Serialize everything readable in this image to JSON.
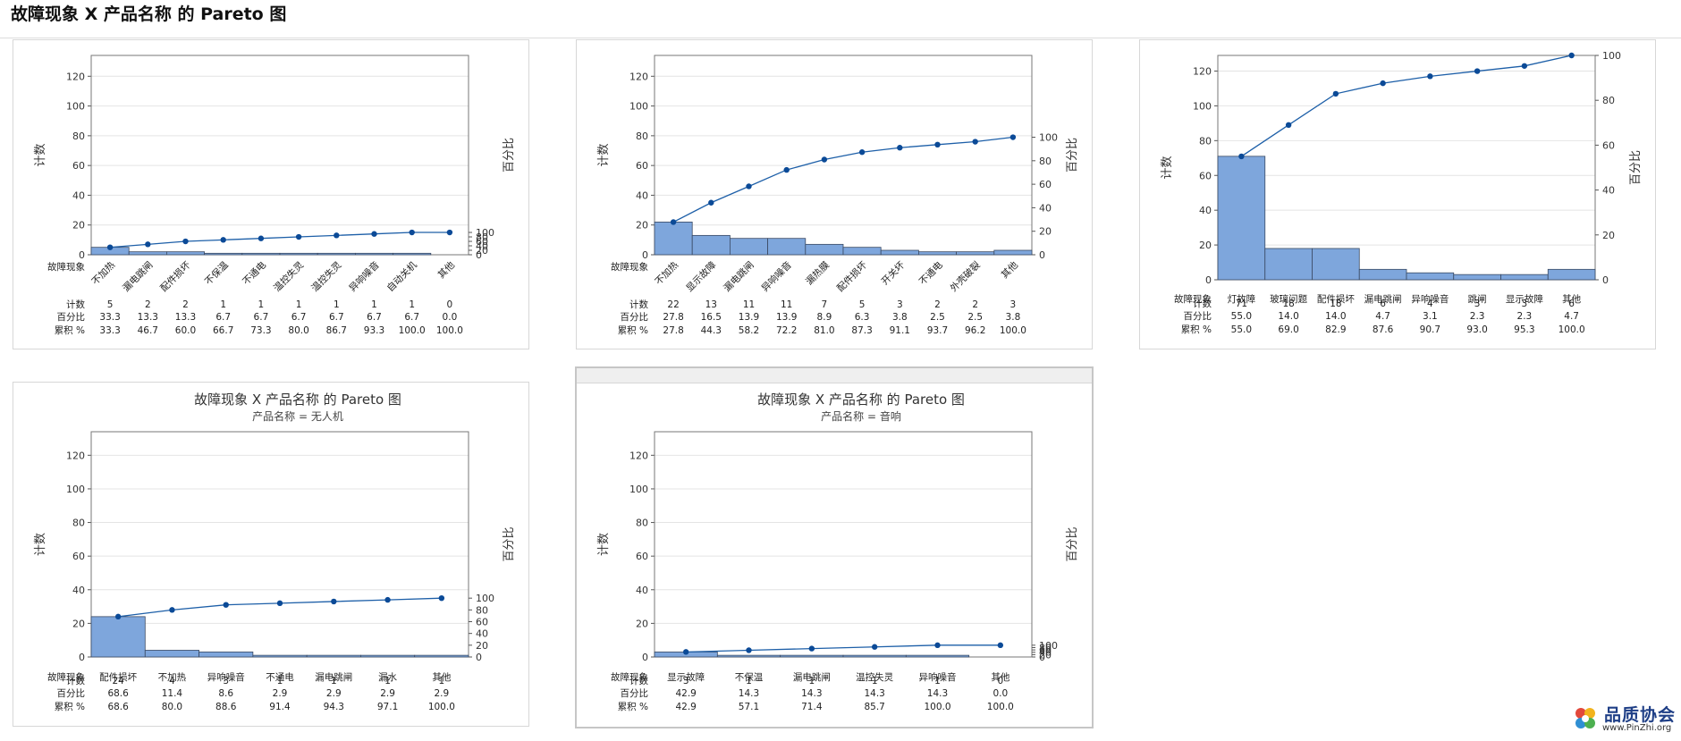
{
  "page": {
    "title": "故障现象 X 产品名称 的 Pareto 图"
  },
  "watermark": {
    "name": "品质协会",
    "url": "www.PinZhi.org"
  },
  "colors": {
    "bar": "#7ea6dc",
    "bar_edge": "#3a4a63",
    "line": "#1d5fa8",
    "marker": "#0b4a97"
  },
  "chart_data": [
    {
      "type": "bar",
      "title": "",
      "subtitle": "",
      "ylabel": "计数",
      "y2label": "百分比",
      "ylim": [
        0,
        134
      ],
      "y2lim": [
        0,
        100
      ],
      "yticks": [
        0,
        20,
        40,
        60,
        80,
        100,
        120
      ],
      "y2ticks": [
        0,
        20,
        40,
        60,
        80,
        100
      ],
      "row_labels": [
        "故障现象",
        "计数",
        "百分比",
        "累积 %"
      ],
      "categories": [
        "不加热",
        "漏电跳闸",
        "配件损坏",
        "不保温",
        "不通电",
        "温控失灵",
        "温控失灵",
        "异响噪音",
        "自动关机",
        "其他"
      ],
      "counts": [
        "5",
        "2",
        "2",
        "1",
        "1",
        "1",
        "1",
        "1",
        "1",
        "0"
      ],
      "percent": [
        "33.3",
        "13.3",
        "13.3",
        "6.7",
        "6.7",
        "6.7",
        "6.7",
        "6.7",
        "6.7",
        "0.0"
      ],
      "cumulative": [
        "33.3",
        "46.7",
        "60.0",
        "66.7",
        "73.3",
        "80.0",
        "86.7",
        "93.3",
        "100.0",
        "100.0"
      ],
      "rotate_labels": true
    },
    {
      "type": "bar",
      "title": "",
      "subtitle": "",
      "ylabel": "计数",
      "y2label": "百分比",
      "ylim": [
        0,
        134
      ],
      "y2lim": [
        0,
        100
      ],
      "yticks": [
        0,
        20,
        40,
        60,
        80,
        100,
        120
      ],
      "y2ticks": [
        0,
        20,
        40,
        60,
        80,
        100
      ],
      "row_labels": [
        "故障现象",
        "计数",
        "百分比",
        "累积 %"
      ],
      "categories": [
        "不加热",
        "显示故障",
        "漏电跳闸",
        "异响噪音",
        "漏热膜",
        "配件损坏",
        "开关坏",
        "不通电",
        "外壳破裂",
        "其他"
      ],
      "counts": [
        "22",
        "13",
        "11",
        "11",
        "7",
        "5",
        "3",
        "2",
        "2",
        "3"
      ],
      "percent": [
        "27.8",
        "16.5",
        "13.9",
        "13.9",
        "8.9",
        "6.3",
        "3.8",
        "2.5",
        "2.5",
        "3.8"
      ],
      "cumulative": [
        "27.8",
        "44.3",
        "58.2",
        "72.2",
        "81.0",
        "87.3",
        "91.1",
        "93.7",
        "96.2",
        "100.0"
      ],
      "rotate_labels": true
    },
    {
      "type": "bar",
      "title": "",
      "subtitle": "",
      "ylabel": "计数",
      "y2label": "百分比",
      "ylim": [
        0,
        129
      ],
      "y2lim": [
        0,
        100
      ],
      "yticks": [
        0,
        20,
        40,
        60,
        80,
        100,
        120
      ],
      "y2ticks": [
        0,
        20,
        40,
        60,
        80,
        100
      ],
      "row_labels": [
        "故障现象",
        "计数",
        "百分比",
        "累积 %"
      ],
      "categories": [
        "灯故障",
        "玻璃问题",
        "配件损坏",
        "漏电跳闸",
        "异响噪音",
        "跳闸",
        "显示故障",
        "其他"
      ],
      "counts": [
        "71",
        "18",
        "18",
        "6",
        "4",
        "3",
        "3",
        "6"
      ],
      "percent": [
        "55.0",
        "14.0",
        "14.0",
        "4.7",
        "3.1",
        "2.3",
        "2.3",
        "4.7"
      ],
      "cumulative": [
        "55.0",
        "69.0",
        "82.9",
        "87.6",
        "90.7",
        "93.0",
        "95.3",
        "100.0"
      ],
      "rotate_labels": false
    },
    {
      "type": "bar",
      "title": "故障现象 X 产品名称 的 Pareto 图",
      "subtitle": "产品名称 = 无人机",
      "ylabel": "计数",
      "y2label": "百分比",
      "ylim": [
        0,
        134
      ],
      "y2lim": [
        0,
        100
      ],
      "yticks": [
        0,
        20,
        40,
        60,
        80,
        100,
        120
      ],
      "y2ticks": [
        0,
        20,
        40,
        60,
        80,
        100
      ],
      "row_labels": [
        "故障现象",
        "计数",
        "百分比",
        "累积 %"
      ],
      "categories": [
        "配件损坏",
        "不加热",
        "异响噪音",
        "不通电",
        "漏电跳闸",
        "漏水",
        "其他"
      ],
      "counts": [
        "24",
        "4",
        "3",
        "1",
        "1",
        "1",
        "1"
      ],
      "percent": [
        "68.6",
        "11.4",
        "8.6",
        "2.9",
        "2.9",
        "2.9",
        "2.9"
      ],
      "cumulative": [
        "68.6",
        "80.0",
        "88.6",
        "91.4",
        "94.3",
        "97.1",
        "100.0"
      ],
      "rotate_labels": false
    },
    {
      "type": "bar",
      "title": "故障现象 X 产品名称 的 Pareto 图",
      "subtitle": "产品名称 = 音响",
      "ylabel": "计数",
      "y2label": "百分比",
      "ylim": [
        0,
        134
      ],
      "y2lim": [
        0,
        100
      ],
      "yticks": [
        0,
        20,
        40,
        60,
        80,
        100,
        120
      ],
      "y2ticks": [
        0,
        20,
        40,
        60,
        80,
        100
      ],
      "row_labels": [
        "故障现象",
        "计数",
        "百分比",
        "累积 %"
      ],
      "categories": [
        "显示故障",
        "不保温",
        "漏电跳闸",
        "温控失灵",
        "异响噪音",
        "其他"
      ],
      "counts": [
        "3",
        "1",
        "1",
        "1",
        "1",
        "0"
      ],
      "percent": [
        "42.9",
        "14.3",
        "14.3",
        "14.3",
        "14.3",
        "0.0"
      ],
      "cumulative": [
        "42.9",
        "57.1",
        "71.4",
        "85.7",
        "100.0",
        "100.0"
      ],
      "rotate_labels": false
    }
  ]
}
